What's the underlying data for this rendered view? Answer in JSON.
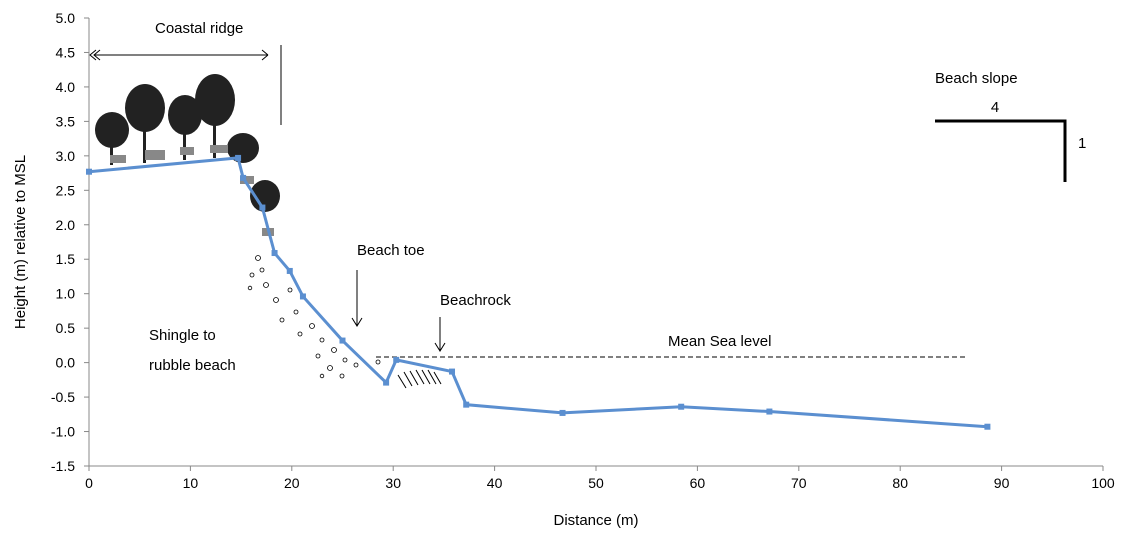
{
  "chart_data": {
    "type": "line",
    "x": [
      0,
      14.7,
      15.2,
      17.1,
      18.3,
      19.8,
      21.1,
      25.0,
      29.3,
      30.3,
      35.8,
      37.2,
      46.7,
      58.4,
      67.1,
      88.6
    ],
    "values": [
      2.77,
      2.97,
      2.68,
      2.25,
      1.59,
      1.33,
      0.96,
      0.32,
      -0.29,
      0.04,
      -0.13,
      -0.61,
      -0.73,
      -0.64,
      -0.71,
      -0.93
    ],
    "color": "#5b8fd0",
    "xlabel": "Distance (m)",
    "ylabel": "Height (m) relative to MSL",
    "xlim": [
      0,
      100
    ],
    "xticks": [
      0,
      10,
      20,
      30,
      40,
      50,
      60,
      70,
      80,
      90,
      100
    ],
    "ylim": [
      -1.5,
      5.0
    ],
    "yticks": [
      -1.5,
      {
        "value": -1,
        "label": "-1.0"
      },
      -0.5,
      {
        "value": 0,
        "label": "0.0"
      },
      0.5,
      {
        "value": 1,
        "label": "1.0"
      },
      1.5,
      {
        "value": 2,
        "label": "2.0"
      },
      2.5,
      {
        "value": 3,
        "label": "3.0"
      },
      3.5,
      {
        "value": 4,
        "label": "4.0"
      },
      4.5,
      {
        "value": 5,
        "label": "5.0"
      }
    ],
    "annotations": {
      "coastal_ridge": "Coastal ridge",
      "beach_toe": "Beach toe",
      "beachrock": "Beachrock",
      "mean_sea_level": "Mean Sea level",
      "shingle": [
        "Shingle to",
        "rubble beach"
      ],
      "beach_slope": "Beach slope",
      "slope_run": "4",
      "slope_rise": "1"
    }
  }
}
